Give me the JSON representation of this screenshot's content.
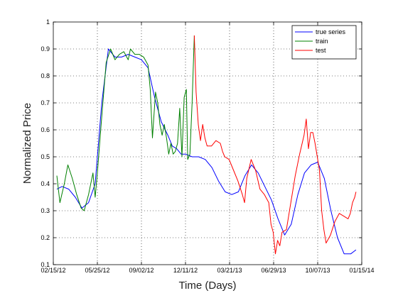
{
  "chart_data": {
    "type": "line",
    "title": "",
    "xlabel": "Time (Days)",
    "ylabel": "Normalized Price",
    "xlim": [
      "2012-02-15",
      "2014-01-15"
    ],
    "ylim": [
      0.1,
      1.0
    ],
    "grid": true,
    "legend_position": "top-right",
    "x_ticks": [
      "02/15/12",
      "05/25/12",
      "09/02/12",
      "12/11/12",
      "03/21/13",
      "06/29/13",
      "10/07/13",
      "01/15/14"
    ],
    "y_ticks": [
      "0.1",
      "0.2",
      "0.3",
      "0.4",
      "0.5",
      "0.6",
      "0.7",
      "0.8",
      "0.9",
      "1"
    ],
    "series": [
      {
        "name": "true series",
        "color": "#0000ff",
        "points": [
          [
            "2012-02-23",
            0.38
          ],
          [
            "2012-03-06",
            0.39
          ],
          [
            "2012-03-21",
            0.38
          ],
          [
            "2012-04-05",
            0.35
          ],
          [
            "2012-04-20",
            0.31
          ],
          [
            "2012-05-05",
            0.33
          ],
          [
            "2012-05-20",
            0.4
          ],
          [
            "2012-06-04",
            0.7
          ],
          [
            "2012-06-19",
            0.9
          ],
          [
            "2012-07-04",
            0.87
          ],
          [
            "2012-07-19",
            0.87
          ],
          [
            "2012-08-03",
            0.88
          ],
          [
            "2012-08-18",
            0.87
          ],
          [
            "2012-09-02",
            0.86
          ],
          [
            "2012-09-17",
            0.83
          ],
          [
            "2012-10-02",
            0.72
          ],
          [
            "2012-10-17",
            0.63
          ],
          [
            "2012-11-01",
            0.58
          ],
          [
            "2012-11-11",
            0.54
          ],
          [
            "2012-11-21",
            0.53
          ],
          [
            "2012-12-01",
            0.51
          ],
          [
            "2012-12-11",
            0.51
          ],
          [
            "2012-12-26",
            0.5
          ],
          [
            "2013-01-10",
            0.5
          ],
          [
            "2013-01-25",
            0.49
          ],
          [
            "2013-02-09",
            0.46
          ],
          [
            "2013-02-24",
            0.41
          ],
          [
            "2013-03-11",
            0.37
          ],
          [
            "2013-03-26",
            0.36
          ],
          [
            "2013-04-10",
            0.37
          ],
          [
            "2013-04-25",
            0.43
          ],
          [
            "2013-05-10",
            0.47
          ],
          [
            "2013-05-25",
            0.44
          ],
          [
            "2013-06-09",
            0.39
          ],
          [
            "2013-06-24",
            0.34
          ],
          [
            "2013-07-09",
            0.27
          ],
          [
            "2013-07-24",
            0.21
          ],
          [
            "2013-08-08",
            0.25
          ],
          [
            "2013-08-23",
            0.36
          ],
          [
            "2013-09-07",
            0.44
          ],
          [
            "2013-09-22",
            0.47
          ],
          [
            "2013-10-07",
            0.48
          ],
          [
            "2013-10-22",
            0.42
          ],
          [
            "2013-11-06",
            0.3
          ],
          [
            "2013-11-21",
            0.2
          ],
          [
            "2013-12-06",
            0.14
          ],
          [
            "2013-12-21",
            0.14
          ],
          [
            "2014-01-02",
            0.155
          ]
        ]
      },
      {
        "name": "train",
        "color": "#008000",
        "points": [
          [
            "2012-02-23",
            0.43
          ],
          [
            "2012-03-01",
            0.33
          ],
          [
            "2012-03-11",
            0.4
          ],
          [
            "2012-03-19",
            0.47
          ],
          [
            "2012-03-29",
            0.42
          ],
          [
            "2012-04-08",
            0.36
          ],
          [
            "2012-04-18",
            0.31
          ],
          [
            "2012-04-25",
            0.3
          ],
          [
            "2012-05-05",
            0.36
          ],
          [
            "2012-05-15",
            0.44
          ],
          [
            "2012-05-20",
            0.35
          ],
          [
            "2012-05-25",
            0.44
          ],
          [
            "2012-06-04",
            0.65
          ],
          [
            "2012-06-14",
            0.85
          ],
          [
            "2012-06-24",
            0.9
          ],
          [
            "2012-07-04",
            0.86
          ],
          [
            "2012-07-14",
            0.88
          ],
          [
            "2012-07-24",
            0.89
          ],
          [
            "2012-08-03",
            0.86
          ],
          [
            "2012-08-08",
            0.9
          ],
          [
            "2012-08-18",
            0.88
          ],
          [
            "2012-08-28",
            0.88
          ],
          [
            "2012-09-07",
            0.87
          ],
          [
            "2012-09-17",
            0.84
          ],
          [
            "2012-09-22",
            0.75
          ],
          [
            "2012-09-27",
            0.57
          ],
          [
            "2012-10-04",
            0.74
          ],
          [
            "2012-10-09",
            0.7
          ],
          [
            "2012-10-14",
            0.62
          ],
          [
            "2012-10-19",
            0.58
          ],
          [
            "2012-10-24",
            0.62
          ],
          [
            "2012-10-29",
            0.57
          ],
          [
            "2012-11-03",
            0.51
          ],
          [
            "2012-11-08",
            0.55
          ],
          [
            "2012-11-13",
            0.51
          ],
          [
            "2012-11-18",
            0.52
          ],
          [
            "2012-11-23",
            0.55
          ],
          [
            "2012-11-28",
            0.68
          ],
          [
            "2012-12-03",
            0.5
          ],
          [
            "2012-12-08",
            0.72
          ],
          [
            "2012-12-13",
            0.75
          ],
          [
            "2012-12-16",
            0.49
          ],
          [
            "2012-12-21",
            0.51
          ],
          [
            "2012-12-26",
            0.7
          ],
          [
            "2012-12-31",
            0.95
          ]
        ]
      },
      {
        "name": "test",
        "color": "#ff0000",
        "points": [
          [
            "2012-12-31",
            0.95
          ],
          [
            "2013-01-04",
            0.74
          ],
          [
            "2013-01-09",
            0.62
          ],
          [
            "2013-01-14",
            0.56
          ],
          [
            "2013-01-19",
            0.62
          ],
          [
            "2013-01-24",
            0.57
          ],
          [
            "2013-01-29",
            0.54
          ],
          [
            "2013-02-08",
            0.54
          ],
          [
            "2013-02-18",
            0.56
          ],
          [
            "2013-02-28",
            0.55
          ],
          [
            "2013-03-05",
            0.52
          ],
          [
            "2013-03-10",
            0.5
          ],
          [
            "2013-03-20",
            0.49
          ],
          [
            "2013-03-30",
            0.45
          ],
          [
            "2013-04-09",
            0.41
          ],
          [
            "2013-04-19",
            0.36
          ],
          [
            "2013-04-24",
            0.33
          ],
          [
            "2013-04-29",
            0.42
          ],
          [
            "2013-05-09",
            0.49
          ],
          [
            "2013-05-19",
            0.45
          ],
          [
            "2013-05-29",
            0.38
          ],
          [
            "2013-06-08",
            0.36
          ],
          [
            "2013-06-18",
            0.33
          ],
          [
            "2013-06-23",
            0.25
          ],
          [
            "2013-06-28",
            0.22
          ],
          [
            "2013-07-03",
            0.14
          ],
          [
            "2013-07-08",
            0.19
          ],
          [
            "2013-07-13",
            0.17
          ],
          [
            "2013-07-18",
            0.22
          ],
          [
            "2013-07-28",
            0.23
          ],
          [
            "2013-08-07",
            0.33
          ],
          [
            "2013-08-17",
            0.43
          ],
          [
            "2013-08-27",
            0.51
          ],
          [
            "2013-09-06",
            0.58
          ],
          [
            "2013-09-11",
            0.64
          ],
          [
            "2013-09-16",
            0.53
          ],
          [
            "2013-09-21",
            0.59
          ],
          [
            "2013-09-26",
            0.59
          ],
          [
            "2013-10-01",
            0.55
          ],
          [
            "2013-10-11",
            0.45
          ],
          [
            "2013-10-16",
            0.3
          ],
          [
            "2013-10-21",
            0.23
          ],
          [
            "2013-10-26",
            0.18
          ],
          [
            "2013-11-05",
            0.21
          ],
          [
            "2013-11-15",
            0.26
          ],
          [
            "2013-11-25",
            0.29
          ],
          [
            "2013-12-05",
            0.28
          ],
          [
            "2013-12-15",
            0.27
          ],
          [
            "2013-12-20",
            0.29
          ],
          [
            "2013-12-25",
            0.33
          ],
          [
            "2013-12-30",
            0.35
          ],
          [
            "2014-01-02",
            0.37
          ]
        ]
      }
    ]
  }
}
